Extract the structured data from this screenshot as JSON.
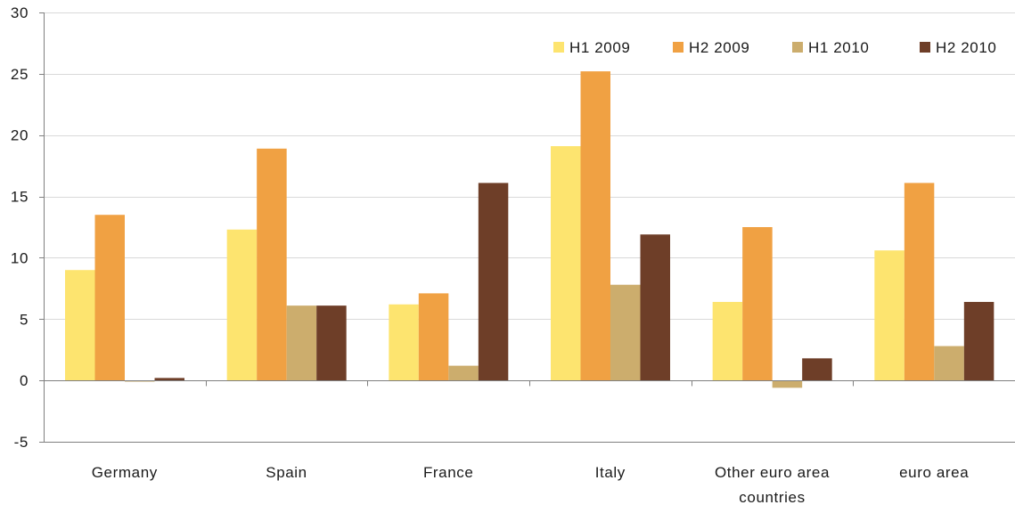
{
  "chart_data": {
    "type": "bar",
    "categories": [
      [
        "Germany"
      ],
      [
        "Spain"
      ],
      [
        "France"
      ],
      [
        "Italy"
      ],
      [
        "Other euro area",
        "countries"
      ],
      [
        "euro area"
      ]
    ],
    "series": [
      {
        "name": "H1 2009",
        "color": "#fde46f",
        "values": [
          9.0,
          12.3,
          6.2,
          19.1,
          6.4,
          10.6
        ]
      },
      {
        "name": "H2 2009",
        "color": "#f0a143",
        "values": [
          13.5,
          18.9,
          7.1,
          25.2,
          12.5,
          16.1
        ]
      },
      {
        "name": "H1 2010",
        "color": "#ccad6d",
        "values": [
          -0.1,
          6.1,
          1.2,
          7.8,
          -0.6,
          2.8
        ]
      },
      {
        "name": "H2 2010",
        "color": "#6e3e28",
        "values": [
          0.2,
          6.1,
          16.1,
          11.9,
          1.8,
          6.4
        ]
      }
    ],
    "yticks": [
      -5,
      0,
      5,
      10,
      15,
      20,
      25,
      30
    ],
    "ylim": [
      -5,
      30
    ],
    "grid": true,
    "legend": "top-right"
  }
}
